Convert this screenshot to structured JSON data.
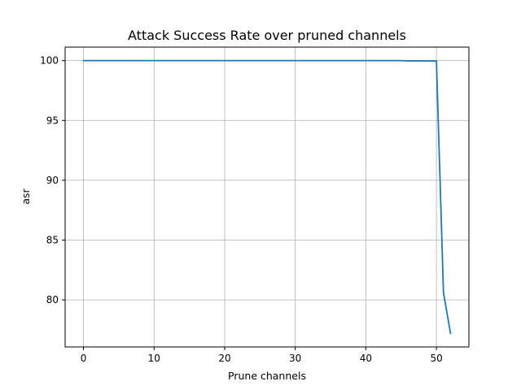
{
  "chart_data": {
    "type": "line",
    "title": "Attack Success Rate over pruned channels",
    "xlabel": "Prune channels",
    "ylabel": "asr",
    "xlim": [
      -2.6,
      54.6
    ],
    "ylim": [
      76.07,
      101.13
    ],
    "xticks": [
      0,
      10,
      20,
      30,
      40,
      50
    ],
    "yticks": [
      80,
      85,
      90,
      95,
      100
    ],
    "grid": true,
    "series": [
      {
        "name": "",
        "color": "#1f77b4",
        "x": [
          0,
          1,
          2,
          3,
          4,
          5,
          6,
          7,
          8,
          9,
          10,
          11,
          12,
          13,
          14,
          15,
          16,
          17,
          18,
          19,
          20,
          21,
          22,
          23,
          24,
          25,
          26,
          27,
          28,
          29,
          30,
          31,
          32,
          33,
          34,
          35,
          36,
          37,
          38,
          39,
          40,
          41,
          42,
          43,
          44,
          45,
          46,
          47,
          48,
          49,
          50,
          51,
          52
        ],
        "y": [
          100,
          100,
          100,
          100,
          100,
          100,
          100,
          100,
          100,
          100,
          100,
          100,
          100,
          100,
          100,
          100,
          100,
          100,
          100,
          100,
          100,
          100,
          100,
          100,
          100,
          100,
          100,
          100,
          100,
          100,
          100,
          100,
          100,
          100,
          100,
          100,
          100,
          100,
          100,
          100,
          100,
          100,
          100,
          100,
          100,
          100,
          99.98,
          99.98,
          99.98,
          99.98,
          99.97,
          80.6,
          77.2
        ]
      }
    ]
  }
}
